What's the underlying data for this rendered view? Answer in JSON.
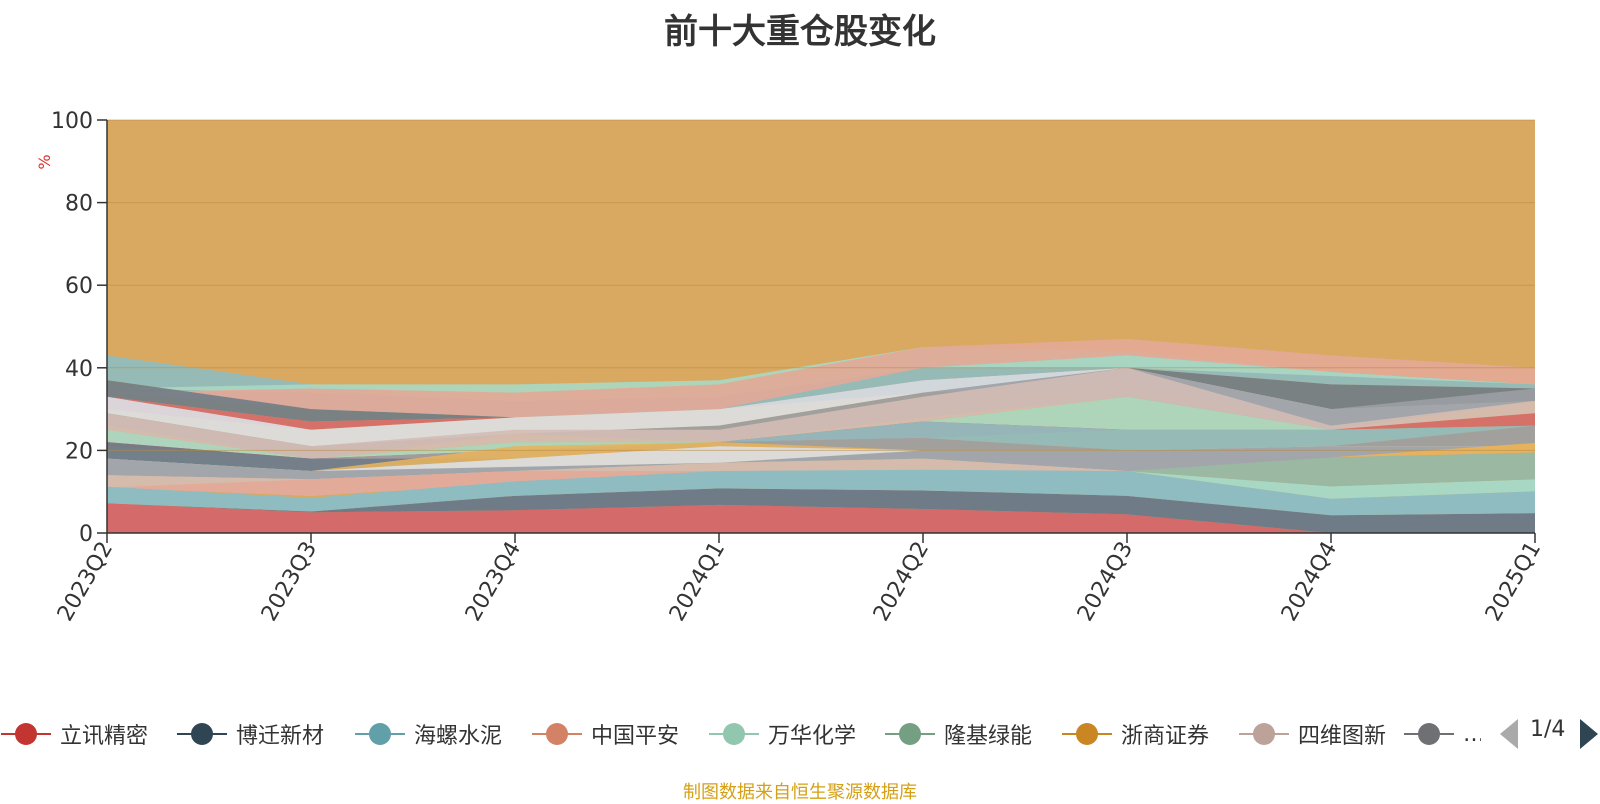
{
  "chart_data": {
    "type": "area",
    "stacked": true,
    "title": "前十大重仓股变化",
    "ylabel": "%",
    "ylim": [
      0,
      100
    ],
    "yticks": [
      0,
      20,
      40,
      60,
      80,
      100
    ],
    "grid": true,
    "legend_position": "bottom",
    "x": [
      "2023Q2",
      "2023Q3",
      "2023Q4",
      "2024Q1",
      "2024Q2",
      "2024Q3",
      "2024Q4",
      "2025Q1"
    ],
    "series": [
      {
        "name": "立讯精密",
        "color": "#d46a6a",
        "values": [
          7.2,
          5.0,
          5.5,
          6.8,
          5.8,
          4.5,
          0,
          0
        ]
      },
      {
        "name": "博迁新材",
        "color": "#6f7c87",
        "values": [
          0,
          0.2,
          3.5,
          4.0,
          4.5,
          4.5,
          4.3,
          4.8
        ]
      },
      {
        "name": "海螺水泥",
        "color": "#8ebcc1",
        "values": [
          4.0,
          3.3,
          3.5,
          4.2,
          5.0,
          6.0,
          4.0,
          5.3
        ]
      },
      {
        "name": "中国平安",
        "color": "#e3a897",
        "values": [
          0,
          0,
          0,
          0,
          0,
          0,
          0,
          0
        ]
      },
      {
        "name": "万华化学",
        "color": "#a8d8c3",
        "values": [
          0,
          0,
          0,
          0,
          0,
          0,
          3.0,
          2.9
        ]
      },
      {
        "name": "隆基绿能",
        "color": "#9bb8a2",
        "values": [
          0,
          0,
          0,
          0,
          0,
          0,
          7.0,
          6.5
        ]
      },
      {
        "name": "浙商证券",
        "color": "#e6b25e",
        "values": [
          0,
          0,
          0,
          0,
          0,
          0,
          0,
          2.3
        ]
      }
    ]
  },
  "legend": {
    "items": [
      {
        "label": "立讯精密",
        "color": "#c23531"
      },
      {
        "label": "博迁新材",
        "color": "#2f4554"
      },
      {
        "label": "海螺水泥",
        "color": "#61a0a8"
      },
      {
        "label": "中国平安",
        "color": "#d48265"
      },
      {
        "label": "万华化学",
        "color": "#91c7ae"
      },
      {
        "label": "隆基绿能",
        "color": "#749f83"
      },
      {
        "label": "浙商证券",
        "color": "#ca8622"
      },
      {
        "label": "四维图新",
        "color": "#bda29a"
      }
    ],
    "truncated_item": {
      "label": "…",
      "color": "#6e7074"
    },
    "pager": "1/4"
  },
  "source_note": "制图数据来自恒生聚源数据库"
}
